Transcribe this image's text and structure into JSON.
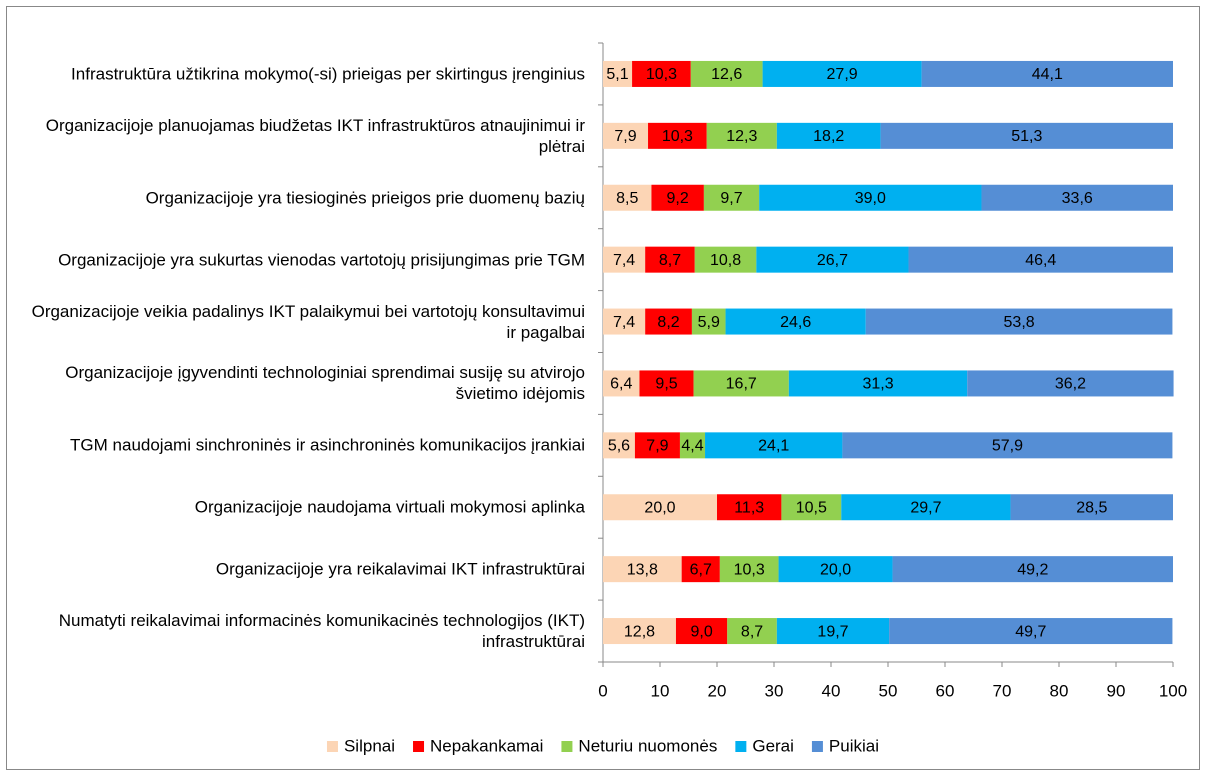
{
  "chart_data": {
    "type": "stacked_bar_horizontal",
    "categories": [
      "Infrastruktūra užtikrina mokymo(-si) prieigas per skirtingus įrenginius",
      "Organizacijoje planuojamas biudžetas IKT infrastruktūros atnaujinimui ir plėtrai",
      "Organizacijoje yra tiesioginės prieigos prie duomenų bazių",
      "Organizacijoje yra sukurtas vienodas vartotojų prisijungimas prie TGM",
      "Organizacijoje veikia padalinys IKT palaikymui bei vartotojų konsultavimui ir pagalbai",
      "Organizacijoje įgyvendinti technologiniai sprendimai susiję su atvirojo švietimo idėjomis",
      "TGM naudojami sinchroninės ir asinchroninės komunikacijos įrankiai",
      "Organizacijoje naudojama virtuali mokymosi aplinka",
      "Organizacijoje yra reikalavimai IKT infrastruktūrai",
      "Numatyti reikalavimai informacinės komunikacinės technologijos (IKT) infrastruktūrai"
    ],
    "series": [
      {
        "name": "Silpnai",
        "color": "#fcd5b5",
        "values": [
          5.1,
          7.9,
          8.5,
          7.4,
          7.4,
          6.4,
          5.6,
          20.0,
          13.8,
          12.8
        ],
        "value_labels": [
          "5,1",
          "7,9",
          "8,5",
          "7,4",
          "7,4",
          "6,4",
          "5,6",
          "20,0",
          "13,8",
          "12,8"
        ]
      },
      {
        "name": "Nepakankamai",
        "color": "#ff0000",
        "values": [
          10.3,
          10.3,
          9.2,
          8.7,
          8.2,
          9.5,
          7.9,
          11.3,
          6.7,
          9.0
        ],
        "value_labels": [
          "10,3",
          "10,3",
          "9,2",
          "8,7",
          "8,2",
          "9,5",
          "7,9",
          "11,3",
          "6,7",
          "9,0"
        ]
      },
      {
        "name": "Neturiu nuomonės",
        "color": "#92d050",
        "values": [
          12.6,
          12.3,
          9.7,
          10.8,
          5.9,
          16.7,
          4.4,
          10.5,
          10.3,
          8.7
        ],
        "value_labels": [
          "12,6",
          "12,3",
          "9,7",
          "10,8",
          "5,9",
          "16,7",
          "4,4",
          "10,5",
          "10,3",
          "8,7"
        ]
      },
      {
        "name": "Gerai",
        "color": "#00b0f0",
        "values": [
          27.9,
          18.2,
          39.0,
          26.7,
          24.6,
          31.3,
          24.1,
          29.7,
          20.0,
          19.7
        ],
        "value_labels": [
          "27,9",
          "18,2",
          "39,0",
          "26,7",
          "24,6",
          "31,3",
          "24,1",
          "29,7",
          "20,0",
          "19,7"
        ]
      },
      {
        "name": "Puikiai",
        "color": "#558ed5",
        "values": [
          44.1,
          51.3,
          33.6,
          46.4,
          53.8,
          36.2,
          57.9,
          28.5,
          49.2,
          49.7
        ],
        "value_labels": [
          "44,1",
          "51,3",
          "33,6",
          "46,4",
          "53,8",
          "36,2",
          "57,9",
          "28,5",
          "49,2",
          "49,7"
        ]
      }
    ],
    "xlim": [
      0,
      100
    ],
    "xticks": [
      0,
      10,
      20,
      30,
      40,
      50,
      60,
      70,
      80,
      90,
      100
    ],
    "legend": "bottom"
  }
}
